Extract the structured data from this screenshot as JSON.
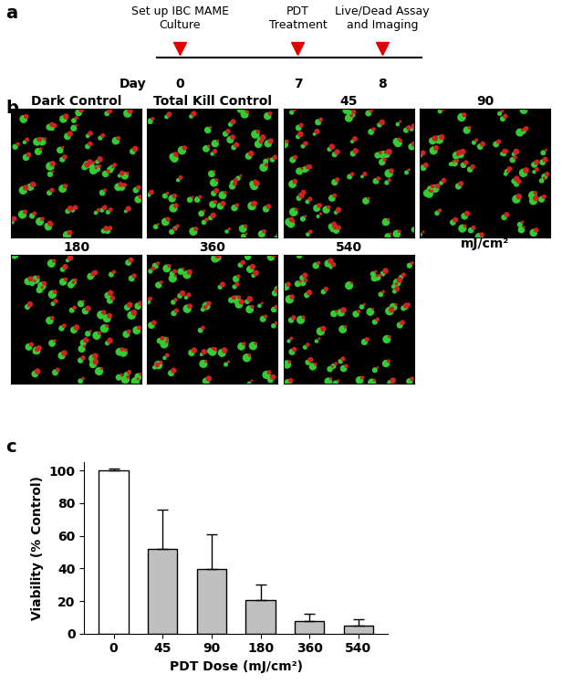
{
  "panel_a": {
    "label": "a",
    "axis_label": "Day",
    "events": [
      {
        "day": 0,
        "text": "Set up IBC MAME\nCulture"
      },
      {
        "day": 7,
        "text": "PDT\nTreatment"
      },
      {
        "day": 8,
        "text": "Live/Dead Assay\nand Imaging"
      }
    ]
  },
  "panel_b": {
    "label": "b",
    "unit": "mJ/cm²",
    "images": [
      "Dark Control",
      "Total Kill Control",
      "45",
      "90",
      "180",
      "360",
      "540"
    ]
  },
  "chart_data": {
    "panel_label": "c",
    "type": "bar",
    "categories": [
      "0",
      "45",
      "90",
      "180",
      "360",
      "540"
    ],
    "values": [
      100,
      52,
      39.5,
      20.5,
      7.5,
      5
    ],
    "errors": [
      1.5,
      24,
      21.5,
      9.5,
      4.5,
      4
    ],
    "colors": [
      "#ffffff",
      "#c0c0c0",
      "#c0c0c0",
      "#c0c0c0",
      "#c0c0c0",
      "#c0c0c0"
    ],
    "ylim": [
      0,
      105
    ],
    "yticks": [
      0,
      20,
      40,
      60,
      80,
      100
    ],
    "y_label": "Viability (% Control)",
    "x_label": "PDT Dose (mJ/cm²)"
  }
}
